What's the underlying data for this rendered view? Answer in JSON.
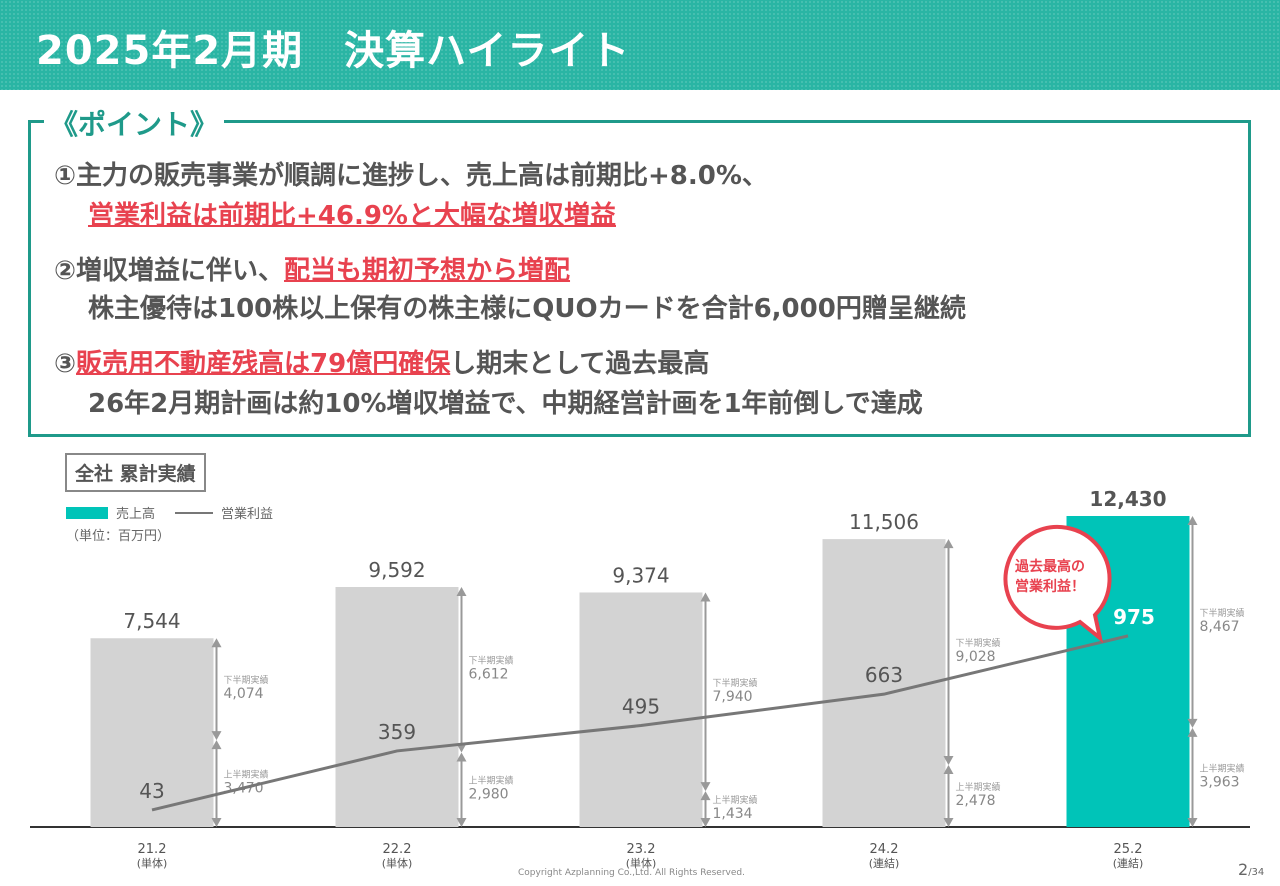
{
  "header": {
    "title": "2025年2月期　決算ハイライト"
  },
  "points": {
    "title": "《ポイント》",
    "p1a": "①主力の販売事業が順調に進捗し、売上高は前期比+8.0%、",
    "p1b": "営業利益は前期比+46.9%と大幅な増収増益",
    "p2a_pre": "②増収増益に伴い、",
    "p2a_red": "配当も期初予想から増配",
    "p2b": "株主優待は100株以上保有の株主様にQUOカードを合計6,000円贈呈継続",
    "p3a_pre": "③",
    "p3a_red": "販売用不動産残高は79億円確保",
    "p3a_post": "し期末として過去最高",
    "p3b": "26年2月期計画は約10%増収増益で、中期経営計画を1年前倒しで達成"
  },
  "section_label": "全社 累計実績",
  "callout": "過去最高の\n営業利益！",
  "colors": {
    "teal": "#00c4b8",
    "gray_bar": "#d3d3d3",
    "line": "#777777",
    "red": "#e8424f",
    "header": "#2ab5a4"
  },
  "chart_data": {
    "type": "bar+line",
    "unit_label": "（単位：百万円）",
    "legend": [
      "売上高",
      "営業利益"
    ],
    "categories": [
      "21.2",
      "22.2",
      "23.2",
      "24.2",
      "25.2"
    ],
    "category_sub": [
      "(単体)",
      "(単体)",
      "(単体)",
      "(連結)",
      "(連結)"
    ],
    "series": [
      {
        "name": "売上高",
        "type": "bar",
        "values": [
          7544,
          9592,
          9374,
          11506,
          12430
        ],
        "labels": [
          "7,544",
          "9,592",
          "9,374",
          "11,506",
          "12,430"
        ]
      },
      {
        "name": "営業利益",
        "type": "line",
        "values": [
          43,
          359,
          495,
          663,
          975
        ],
        "labels": [
          "43",
          "359",
          "495",
          "663",
          "975"
        ]
      }
    ],
    "half_year": {
      "first_label": "上半期実績",
      "second_label": "下半期実績",
      "first": [
        "3,470",
        "2,980",
        "1,434",
        "2,478",
        "3,963"
      ],
      "second": [
        "4,074",
        "6,612",
        "7,940",
        "9,028",
        "8,467"
      ],
      "first_values": [
        3470,
        2980,
        1434,
        2478,
        3963
      ]
    }
  },
  "footer": {
    "copyright": "Copyright Azplanning Co.,Ltd. All Rights Reserved.",
    "page": "2",
    "total": "/34"
  }
}
